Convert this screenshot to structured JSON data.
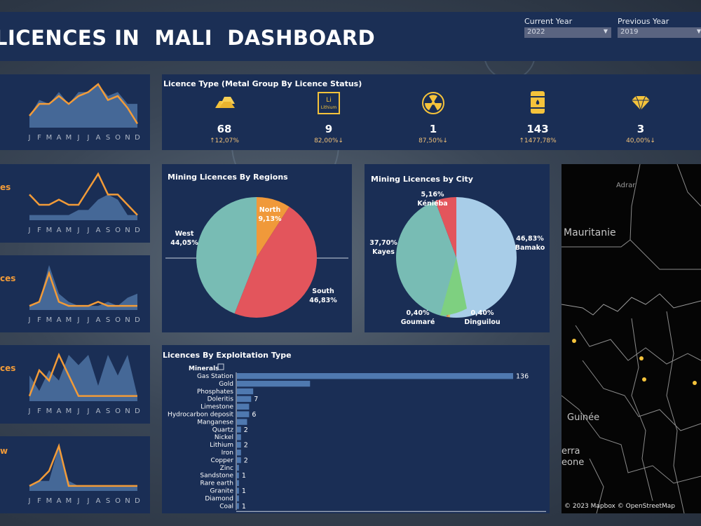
{
  "header": {
    "title": "LICENCES IN  MALI  DASHBOARD"
  },
  "filters": {
    "current_year_label": "Current Year",
    "current_year_value": "2022",
    "previous_year_label": "Previous Year",
    "previous_year_value": "2019"
  },
  "sparklines": {
    "month_ticks": [
      "J",
      "F",
      "M",
      "A",
      "M",
      "J",
      "J",
      "A",
      "S",
      "O",
      "N",
      "D"
    ],
    "cards": [
      {
        "title": "",
        "area": [
          3,
          7,
          6,
          9,
          6,
          9,
          9,
          11,
          8,
          9,
          6,
          6
        ],
        "line": [
          3,
          6,
          6,
          8,
          6,
          8,
          9,
          11,
          7,
          8,
          5,
          1
        ]
      },
      {
        "title": "es",
        "area": [
          1,
          1,
          1,
          1,
          1,
          2,
          2,
          4,
          5,
          4,
          1,
          1
        ],
        "line": [
          5,
          3,
          3,
          4,
          3,
          3,
          6,
          9,
          5,
          5,
          3,
          1
        ]
      },
      {
        "title": "ces",
        "area": [
          1,
          2,
          11,
          4,
          2,
          1,
          1,
          1,
          2,
          1,
          3,
          4
        ],
        "line": [
          1,
          2,
          9,
          2,
          1,
          1,
          1,
          2,
          1,
          1,
          1,
          1
        ]
      },
      {
        "title": "ces",
        "area": [
          5,
          2,
          6,
          4,
          9,
          7,
          9,
          3,
          9,
          5,
          9,
          1
        ],
        "line": [
          1,
          6,
          4,
          9,
          5,
          1,
          1,
          1,
          1,
          1,
          1,
          1
        ]
      },
      {
        "title": "w",
        "area": [
          1,
          2,
          2,
          9,
          2,
          1,
          1,
          1,
          1,
          1,
          1,
          1
        ],
        "line": [
          1,
          2,
          4,
          9,
          1,
          1,
          1,
          1,
          1,
          1,
          1,
          1
        ]
      }
    ]
  },
  "licence_type": {
    "title": "Licence Type (Metal Group By Licence Status)",
    "items": [
      {
        "icon": "gold-bar-icon",
        "value": "68",
        "change": "↑12,07%"
      },
      {
        "icon": "lithium-element-icon",
        "value": "9",
        "change": "82,00%↓",
        "icon_text_symbol": "Li",
        "icon_text_name": "Lithium"
      },
      {
        "icon": "radioactive-icon",
        "value": "1",
        "change": "87,50%↓"
      },
      {
        "icon": "oil-barrel-icon",
        "value": "143",
        "change": "↑1477,78%"
      },
      {
        "icon": "diamond-icon",
        "value": "3",
        "change": "40,00%↓"
      }
    ]
  },
  "regions": {
    "title": "Mining Licences By Regions",
    "labels": [
      {
        "name": "North",
        "pct": "9,13%"
      },
      {
        "name": "South",
        "pct": "46,83%"
      },
      {
        "name": "West",
        "pct": "44,05%"
      }
    ]
  },
  "cities": {
    "title": "Mining Licences by City",
    "labels": [
      {
        "name": "Bamako",
        "pct": "46,83%"
      },
      {
        "name": "Dinguilou",
        "pct": "0,40%"
      },
      {
        "name": "Goumaré",
        "pct": "0,40%"
      },
      {
        "name": "Kayes",
        "pct": "37,70%"
      },
      {
        "name": "Kéniéba",
        "pct": "5,16%"
      }
    ]
  },
  "exploitation": {
    "title": "Licences By Exploitation Type",
    "axis_header": "Minerals"
  },
  "map": {
    "labels": [
      "Adrar",
      "Mauritanie",
      "Guinée",
      "erra",
      "eone"
    ],
    "credit": "© 2023 Mapbox  © OpenStreetMap"
  },
  "colors": {
    "panel": "#1a2e55",
    "orange": "#f29b38",
    "area_fill": "#4a6f9e",
    "pie_teal": "#78bcb4",
    "pie_red": "#e3555c",
    "pie_orange": "#f0993a",
    "pie_lightblue": "#a8cde8",
    "pie_green": "#7ed080",
    "bar": "#4f79b0",
    "gold": "#f5c33b"
  },
  "chart_data": [
    {
      "type": "pie",
      "title": "Mining Licences By Regions",
      "categories": [
        "North",
        "South",
        "West"
      ],
      "values": [
        9.13,
        46.83,
        44.05
      ]
    },
    {
      "type": "pie",
      "title": "Mining Licences by City",
      "categories": [
        "Bamako",
        "Dinguilou",
        "Goumaré",
        "Kayes",
        "Kéniéba"
      ],
      "values": [
        46.83,
        0.4,
        0.4,
        37.7,
        5.16
      ]
    },
    {
      "type": "bar",
      "title": "Licences By Exploitation Type",
      "categories": [
        "Gas Station",
        "Gold",
        "Phosphates",
        "Doleritis",
        "Limestone",
        "Hydrocarbon deposit",
        "Manganese",
        "Quartz",
        "Nickel",
        "Lithium",
        "Iron",
        "Copper",
        "Zinc",
        "Sandstone",
        "Rare earth",
        "Granite",
        "Diamond",
        "Coal"
      ],
      "values": [
        136,
        36,
        8,
        7,
        6,
        6,
        5,
        2,
        2,
        2,
        2,
        2,
        1,
        1,
        1,
        1,
        1,
        1
      ],
      "value_labels": [
        "136",
        "",
        "",
        "7",
        "",
        "6",
        "",
        "2",
        "",
        "2",
        "",
        "2",
        "",
        "1",
        "",
        "1",
        "",
        "1"
      ]
    },
    {
      "type": "line",
      "title": "",
      "x": [
        "J",
        "F",
        "M",
        "A",
        "M",
        "J",
        "J",
        "A",
        "S",
        "O",
        "N",
        "D"
      ],
      "series": [
        {
          "values": [
            3,
            6,
            6,
            8,
            6,
            8,
            9,
            11,
            7,
            8,
            5,
            1
          ]
        },
        {
          "values": [
            3,
            7,
            6,
            9,
            6,
            9,
            9,
            11,
            8,
            9,
            6,
            6
          ]
        }
      ]
    }
  ]
}
